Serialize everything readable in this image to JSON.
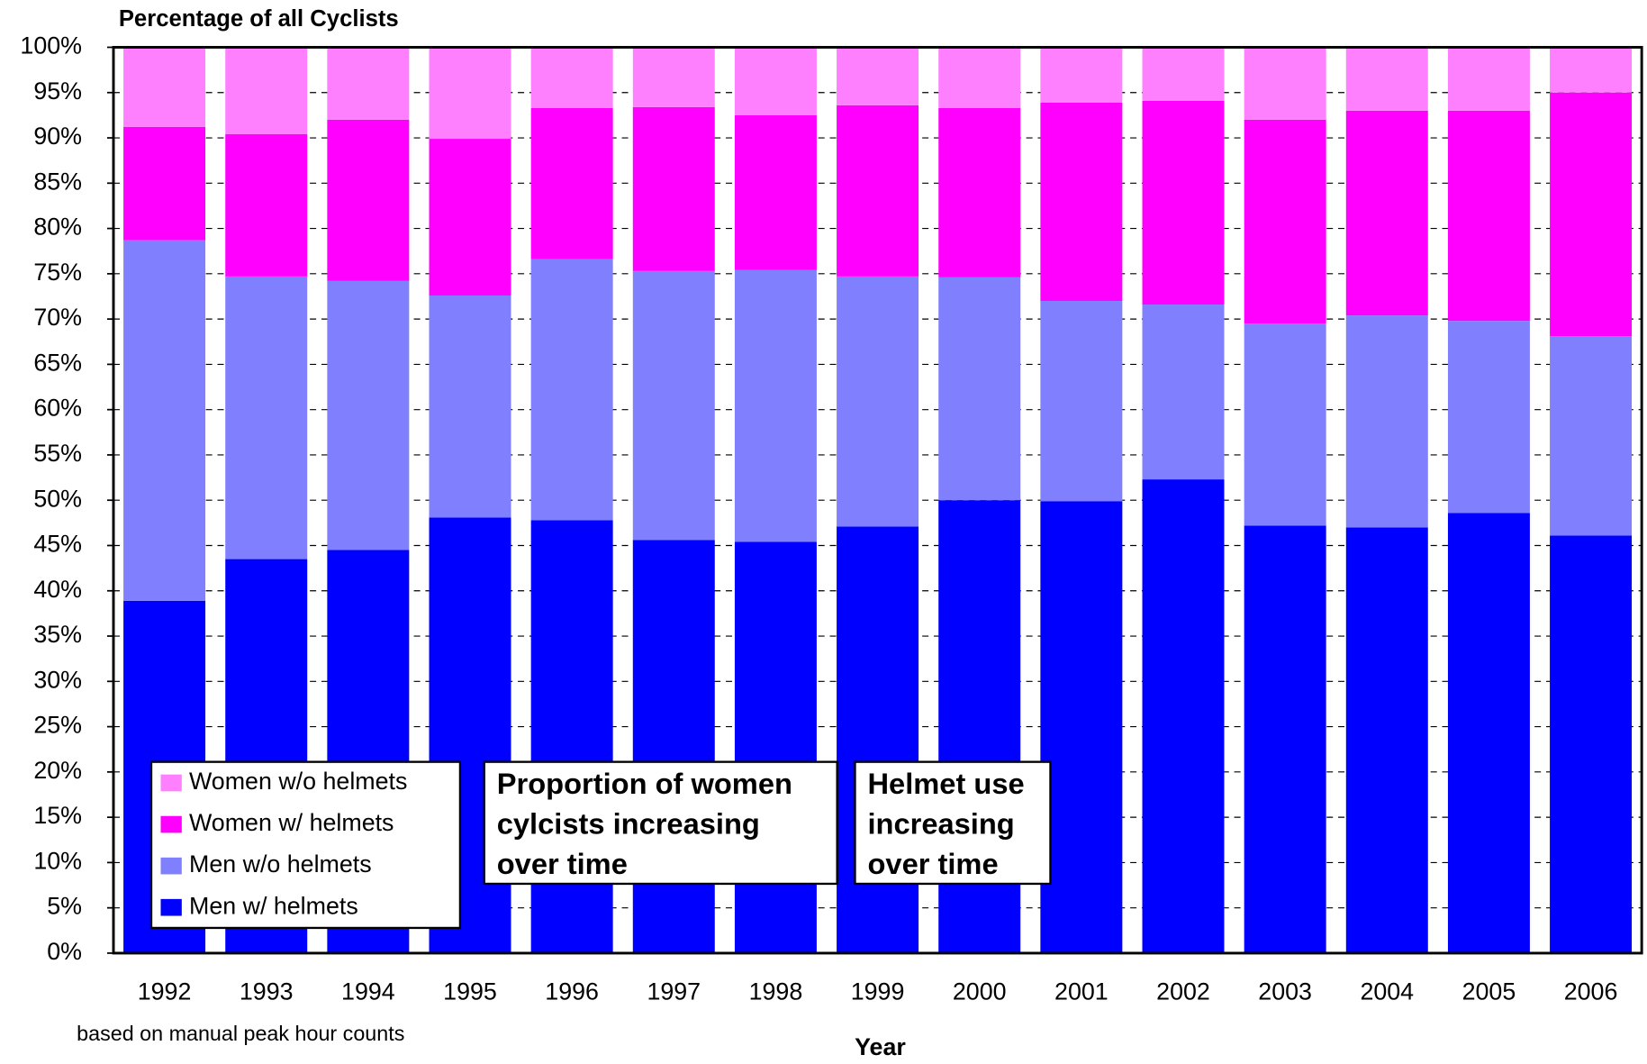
{
  "chart_data": {
    "type": "stacked_bar",
    "title": "Percentage of all Cyclists",
    "x_label": "Year",
    "note": "based on manual peak hour counts",
    "categories": [
      "1992",
      "1993",
      "1994",
      "1995",
      "1996",
      "1997",
      "1998",
      "1999",
      "2000",
      "2001",
      "2002",
      "2003",
      "2004",
      "2005",
      "2006"
    ],
    "series": [
      {
        "name": "Men w/ helmets",
        "color": "#0000ff",
        "values": [
          38.9,
          43.5,
          44.5,
          48.1,
          47.8,
          45.6,
          45.4,
          47.1,
          50.0,
          49.9,
          52.3,
          47.2,
          47.0,
          48.6,
          46.1
        ]
      },
      {
        "name": "Men w/o helmets",
        "color": "#8080ff",
        "values": [
          39.8,
          31.2,
          29.7,
          24.5,
          28.8,
          29.7,
          30.0,
          27.6,
          24.6,
          22.1,
          19.3,
          22.3,
          23.4,
          21.2,
          22.0
        ]
      },
      {
        "name": "Women w/ helmets",
        "color": "#ff00ff",
        "values": [
          12.5,
          15.7,
          17.8,
          17.3,
          16.7,
          18.1,
          17.1,
          18.9,
          18.7,
          21.9,
          22.5,
          22.5,
          22.6,
          23.2,
          26.9
        ]
      },
      {
        "name": "Women w/o helmets",
        "color": "#ff80ff",
        "values": [
          8.8,
          9.6,
          8.0,
          10.1,
          6.7,
          6.6,
          7.5,
          6.4,
          6.7,
          6.1,
          5.9,
          8.0,
          7.0,
          7.0,
          5.0
        ]
      }
    ],
    "ylim": [
      0,
      100
    ],
    "yticks": [
      {
        "value": 0,
        "label": "0%"
      },
      {
        "value": 5,
        "label": "5%"
      },
      {
        "value": 10,
        "label": "10%"
      },
      {
        "value": 15,
        "label": "15%"
      },
      {
        "value": 20,
        "label": "20%"
      },
      {
        "value": 25,
        "label": "25%"
      },
      {
        "value": 30,
        "label": "30%"
      },
      {
        "value": 35,
        "label": "35%"
      },
      {
        "value": 40,
        "label": "40%"
      },
      {
        "value": 45,
        "label": "45%"
      },
      {
        "value": 50,
        "label": "50%"
      },
      {
        "value": 55,
        "label": "55%"
      },
      {
        "value": 60,
        "label": "60%"
      },
      {
        "value": 65,
        "label": "65%"
      },
      {
        "value": 70,
        "label": "70%"
      },
      {
        "value": 75,
        "label": "75%"
      },
      {
        "value": 80,
        "label": "80%"
      },
      {
        "value": 85,
        "label": "85%"
      },
      {
        "value": 90,
        "label": "90%"
      },
      {
        "value": 95,
        "label": "95%"
      },
      {
        "value": 100,
        "label": "100%"
      }
    ],
    "grid": true,
    "legend": "bottom-left",
    "annotations": [
      {
        "lines": [
          "Proportion of women",
          "cylcists increasing",
          "over time"
        ]
      },
      {
        "lines": [
          "Helmet use",
          "increasing",
          "over time"
        ]
      }
    ]
  }
}
